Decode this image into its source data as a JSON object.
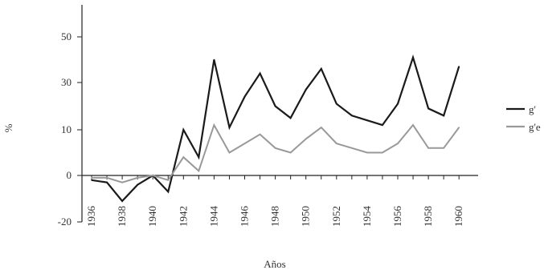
{
  "chart_data": {
    "type": "line",
    "title": "",
    "xlabel": "Años",
    "ylabel": "%",
    "x": [
      1936,
      1937,
      1938,
      1939,
      1940,
      1941,
      1942,
      1943,
      1944,
      1945,
      1946,
      1947,
      1948,
      1949,
      1950,
      1951,
      1952,
      1953,
      1954,
      1955,
      1956,
      1957,
      1958,
      1959,
      1960
    ],
    "x_tick_labels": [
      "1936",
      "1938",
      "1940",
      "1942",
      "1944",
      "1946",
      "1948",
      "1950",
      "1952",
      "1954",
      "1956",
      "1958",
      "1960"
    ],
    "y_tick_labels": [
      "50",
      "30",
      "10",
      "0",
      "-20"
    ],
    "series": [
      {
        "name": "g'",
        "color": "#1a1a1a",
        "values": [
          -2,
          -3,
          -11,
          -4,
          0,
          -7,
          10,
          4,
          40,
          11,
          24,
          34,
          20,
          15,
          27,
          36,
          21,
          16,
          14,
          12,
          21,
          41,
          19,
          16,
          37
        ]
      },
      {
        "name": "g'e",
        "color": "#999999",
        "values": [
          -1,
          -1,
          -3,
          -1,
          0,
          -2,
          4,
          1,
          12,
          5,
          7,
          9,
          6,
          5,
          8,
          11,
          7,
          6,
          5,
          5,
          7,
          12,
          6,
          6,
          11
        ]
      }
    ],
    "legend_position": "right",
    "grid": false
  }
}
